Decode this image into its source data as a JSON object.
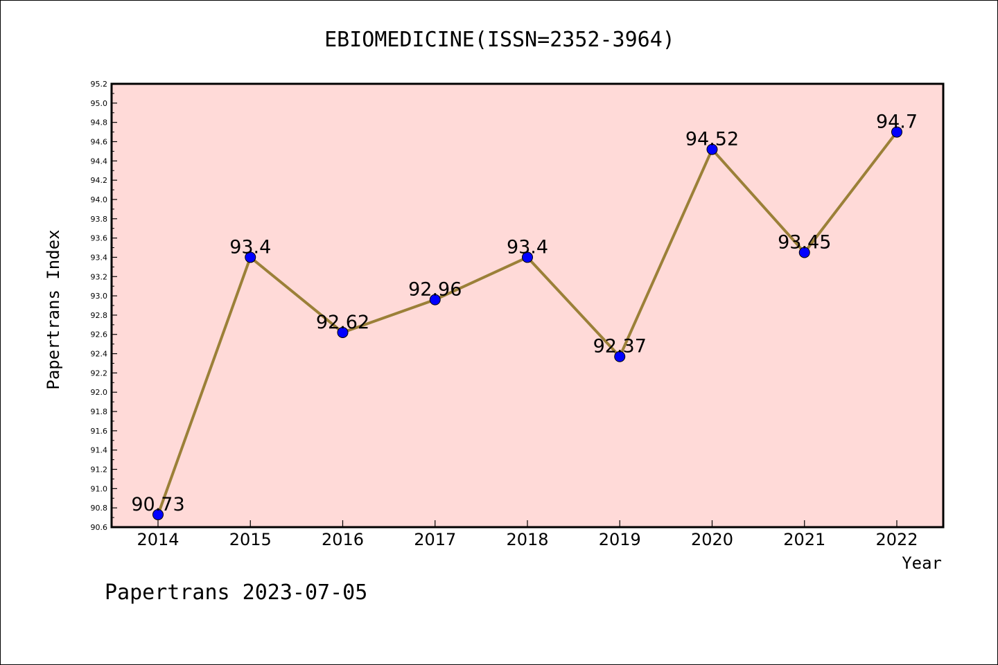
{
  "chart_data": {
    "type": "line",
    "title": "EBIOMEDICINE(ISSN=2352-3964)",
    "xlabel": "Year",
    "ylabel": "Papertrans Index",
    "categories": [
      "2014",
      "2015",
      "2016",
      "2017",
      "2018",
      "2019",
      "2020",
      "2021",
      "2022"
    ],
    "values": [
      90.73,
      93.4,
      92.62,
      92.96,
      93.4,
      92.37,
      94.52,
      93.45,
      94.7
    ],
    "data_labels": [
      "90.73",
      "93.4",
      "92.62",
      "92.96",
      "93.4",
      "92.37",
      "94.52",
      "93.45",
      "94.7"
    ],
    "ylim": [
      90.6,
      95.2
    ],
    "yticks": [
      "90.6",
      "90.8",
      "91.0",
      "91.2",
      "91.4",
      "91.6",
      "91.8",
      "92.0",
      "92.2",
      "92.4",
      "92.6",
      "92.8",
      "93.0",
      "93.2",
      "93.4",
      "93.6",
      "93.8",
      "94.0",
      "94.2",
      "94.4",
      "94.6",
      "94.8",
      "95.0",
      "95.2"
    ],
    "grid": false,
    "legend": "none",
    "colors": {
      "plot_background": "#FFDAD8",
      "line": "#9B8038",
      "marker": "#0000FF"
    }
  },
  "footer": {
    "text": "Papertrans 2023-07-05"
  }
}
